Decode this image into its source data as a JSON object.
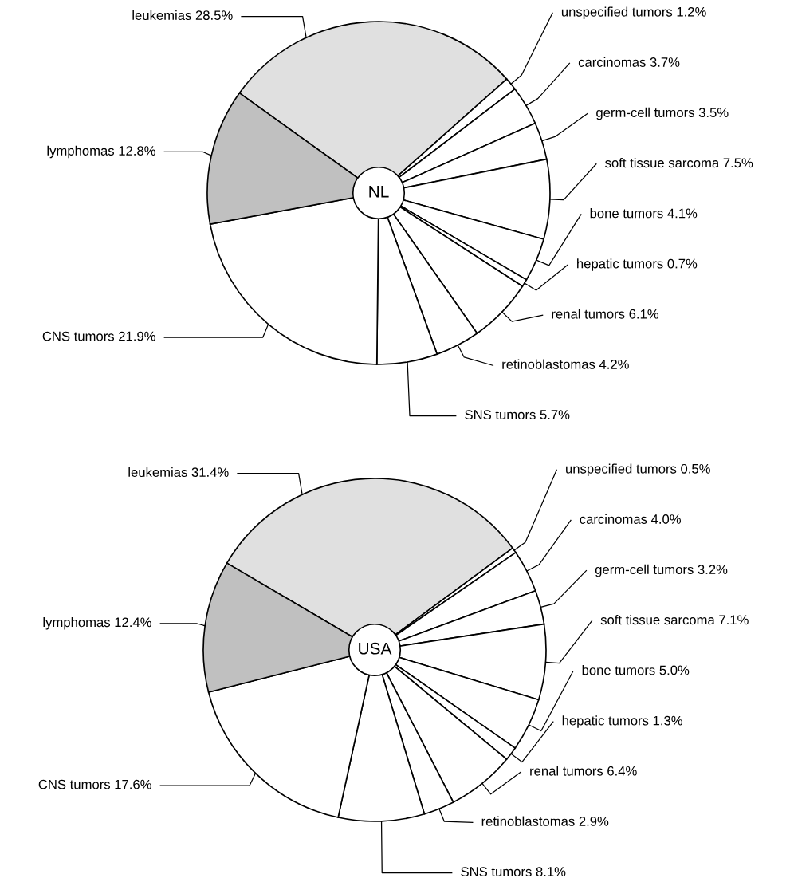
{
  "chart_data": [
    {
      "type": "pie",
      "title": "NL",
      "categories": [
        "leukemias",
        "unspecified tumors",
        "carcinomas",
        "germ-cell tumors",
        "soft tissue sarcoma",
        "bone tumors",
        "hepatic tumors",
        "renal tumors",
        "retinoblastomas",
        "SNS tumors",
        "CNS tumors",
        "lymphomas"
      ],
      "values": [
        28.5,
        1.2,
        3.7,
        3.5,
        7.5,
        4.1,
        0.7,
        6.1,
        4.2,
        5.7,
        21.9,
        12.8
      ],
      "value_labels": [
        "28.5%",
        "1.2%",
        "3.7%",
        "3.5%",
        "7.5%",
        "4.1%",
        "0.7%",
        "6.1%",
        "4.2%",
        "5.7%",
        "21.9%",
        "12.8%"
      ],
      "colors": [
        "#e0e0e0",
        "#ffffff",
        "#ffffff",
        "#ffffff",
        "#ffffff",
        "#ffffff",
        "#ffffff",
        "#ffffff",
        "#ffffff",
        "#ffffff",
        "#ffffff",
        "#c0c0c0"
      ],
      "legend": false
    },
    {
      "type": "pie",
      "title": "USA",
      "categories": [
        "leukemias",
        "unspecified tumors",
        "carcinomas",
        "germ-cell tumors",
        "soft tissue sarcoma",
        "bone tumors",
        "hepatic tumors",
        "renal tumors",
        "retinoblastomas",
        "SNS tumors",
        "CNS tumors",
        "lymphomas"
      ],
      "values": [
        31.4,
        0.5,
        4.0,
        3.2,
        7.1,
        5.0,
        1.3,
        6.4,
        2.9,
        8.1,
        17.6,
        12.4
      ],
      "value_labels": [
        "31.4%",
        "0.5%",
        "4.0%",
        "3.2%",
        "7.1%",
        "5.0%",
        "1.3%",
        "6.4%",
        "2.9%",
        "8.1%",
        "17.6%",
        "12.4%"
      ],
      "colors": [
        "#e0e0e0",
        "#ffffff",
        "#ffffff",
        "#ffffff",
        "#ffffff",
        "#ffffff",
        "#ffffff",
        "#ffffff",
        "#ffffff",
        "#ffffff",
        "#ffffff",
        "#c0c0c0"
      ],
      "legend": false
    }
  ]
}
